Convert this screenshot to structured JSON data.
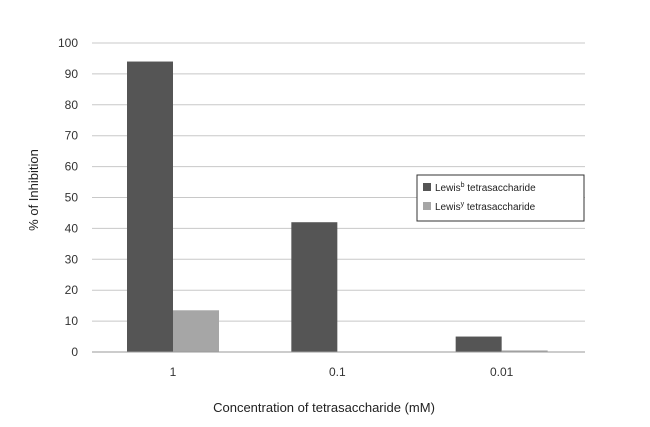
{
  "chart_data": {
    "type": "bar",
    "categories": [
      "1",
      "0.1",
      "0.01"
    ],
    "series": [
      {
        "name": "Lewis^b tetrasaccharide",
        "name_base": "Lewis",
        "name_sup": "b",
        "name_rest": " tetrasaccharide",
        "color": "#555555",
        "values": [
          94,
          42,
          5
        ]
      },
      {
        "name": "Lewis^y tetrasaccharide",
        "name_base": "Lewis",
        "name_sup": "y",
        "name_rest": " tetrasaccharide",
        "color": "#a6a6a6",
        "values": [
          13.5,
          0,
          0.5
        ]
      }
    ],
    "xlabel": "Concentration of tetrasaccharide (mM)",
    "ylabel": "% of Inhibition",
    "ylim": [
      0,
      100
    ],
    "yticks": [
      0,
      10,
      20,
      30,
      40,
      50,
      60,
      70,
      80,
      90,
      100
    ],
    "grid": true,
    "legend": "right"
  }
}
